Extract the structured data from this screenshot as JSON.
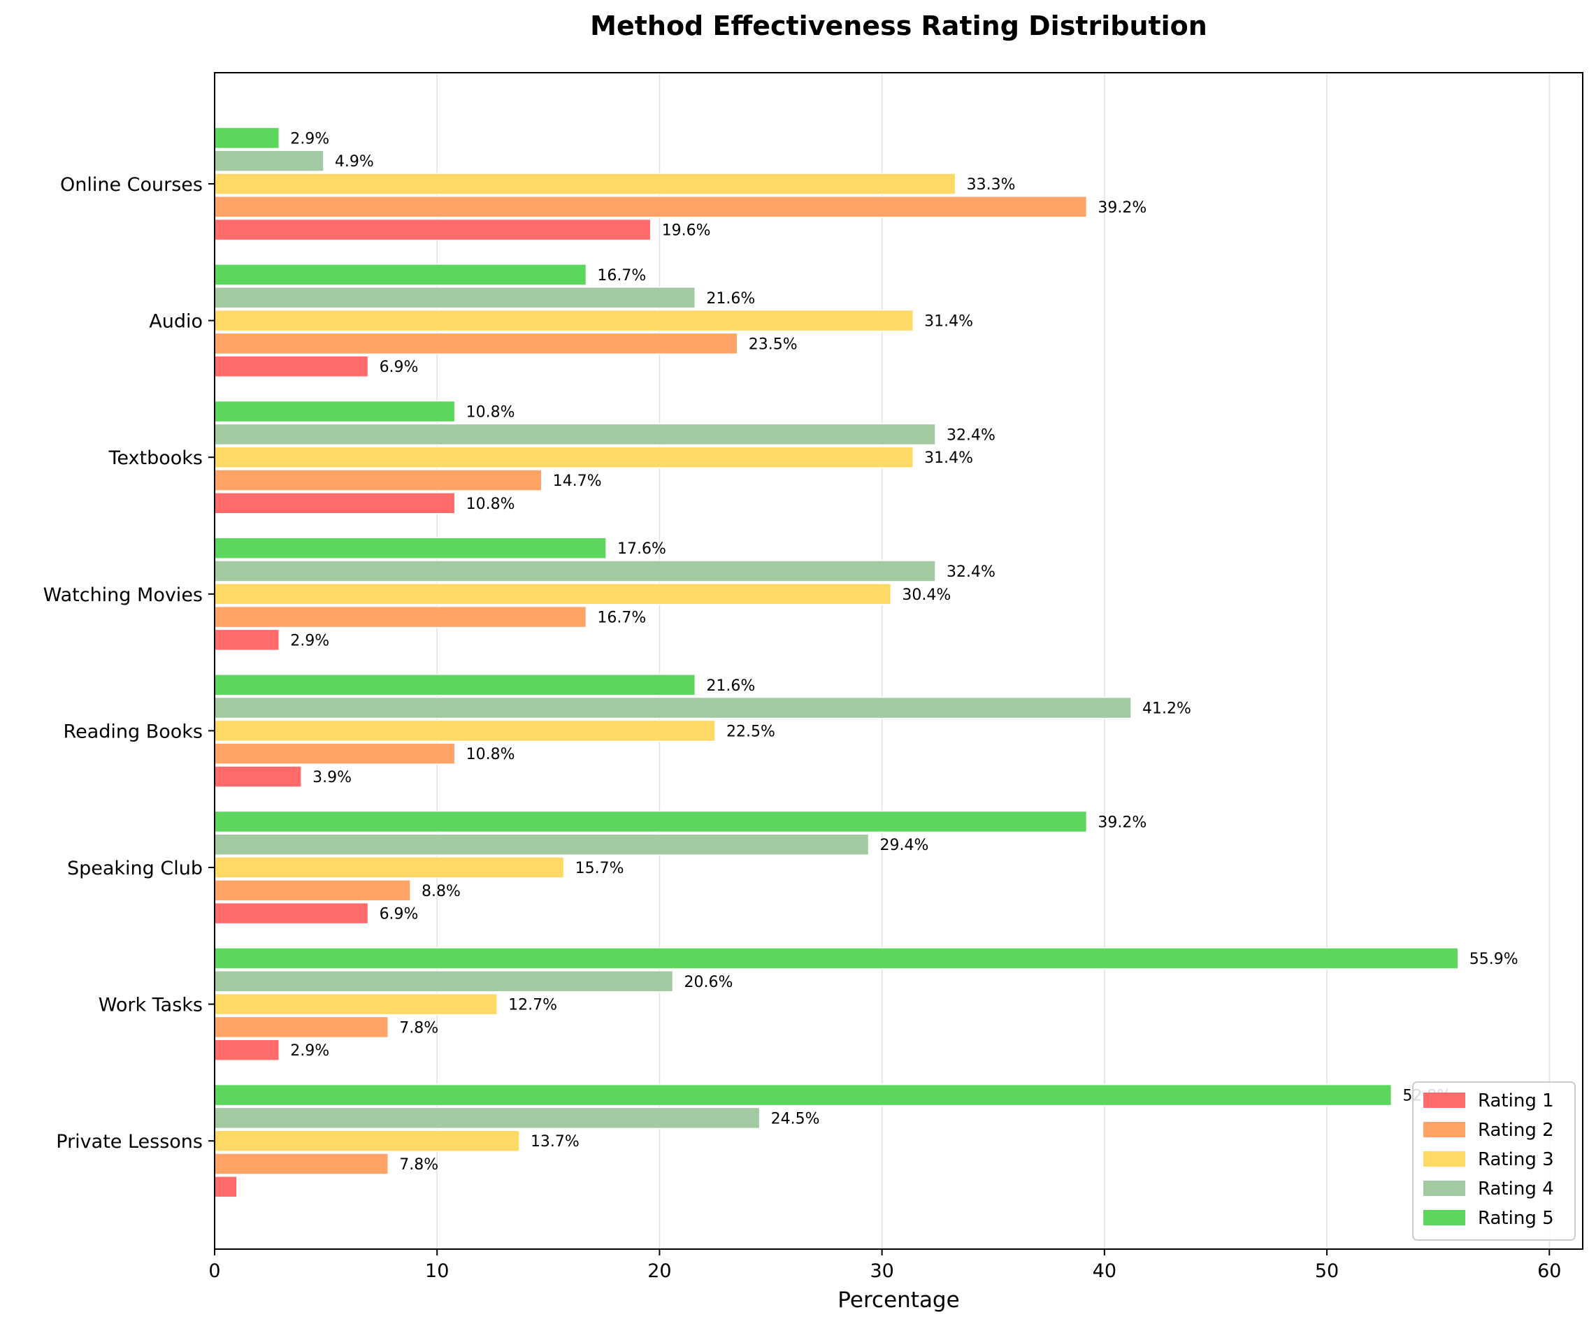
{
  "chart_data": {
    "type": "bar",
    "orientation": "horizontal",
    "title": "Method Effectiveness Rating Distribution",
    "xlabel": "Percentage",
    "ylabel": "",
    "xlim": [
      0,
      61.5
    ],
    "xticks": [
      0,
      10,
      20,
      30,
      40,
      50,
      60
    ],
    "grid": "vertical",
    "legend_position": "bottom-right",
    "categories": [
      "Online Courses",
      "Audio",
      "Textbooks",
      "Watching Movies",
      "Reading Books",
      "Speaking Club",
      "Work Tasks",
      "Private Lessons"
    ],
    "series": [
      {
        "name": "Rating 1",
        "color": "#ff6b6b",
        "values": [
          19.6,
          6.9,
          10.8,
          2.9,
          3.9,
          6.9,
          2.9,
          1.0
        ]
      },
      {
        "name": "Rating 2",
        "color": "#ffa366",
        "values": [
          39.2,
          23.5,
          14.7,
          16.7,
          10.8,
          8.8,
          7.8,
          7.8
        ]
      },
      {
        "name": "Rating 3",
        "color": "#ffd966",
        "values": [
          33.3,
          31.4,
          31.4,
          30.4,
          22.5,
          15.7,
          12.7,
          13.7
        ]
      },
      {
        "name": "Rating 4",
        "color": "#a3c9a3",
        "values": [
          4.9,
          21.6,
          32.4,
          32.4,
          41.2,
          29.4,
          20.6,
          24.5
        ]
      },
      {
        "name": "Rating 5",
        "color": "#5cd65c",
        "values": [
          2.9,
          16.7,
          10.8,
          17.6,
          21.6,
          39.2,
          55.9,
          52.9
        ]
      }
    ],
    "value_labels": [
      [
        "19.6%",
        "6.9%",
        "10.8%",
        "2.9%",
        "3.9%",
        "6.9%",
        "2.9%",
        ""
      ],
      [
        "39.2%",
        "23.5%",
        "14.7%",
        "16.7%",
        "10.8%",
        "8.8%",
        "7.8%",
        "7.8%"
      ],
      [
        "33.3%",
        "31.4%",
        "31.4%",
        "30.4%",
        "22.5%",
        "15.7%",
        "12.7%",
        "13.7%"
      ],
      [
        "4.9%",
        "21.6%",
        "32.4%",
        "32.4%",
        "41.2%",
        "29.4%",
        "20.6%",
        "24.5%"
      ],
      [
        "2.9%",
        "16.7%",
        "10.8%",
        "17.6%",
        "21.6%",
        "39.2%",
        "55.9%",
        "52.9%"
      ]
    ]
  }
}
